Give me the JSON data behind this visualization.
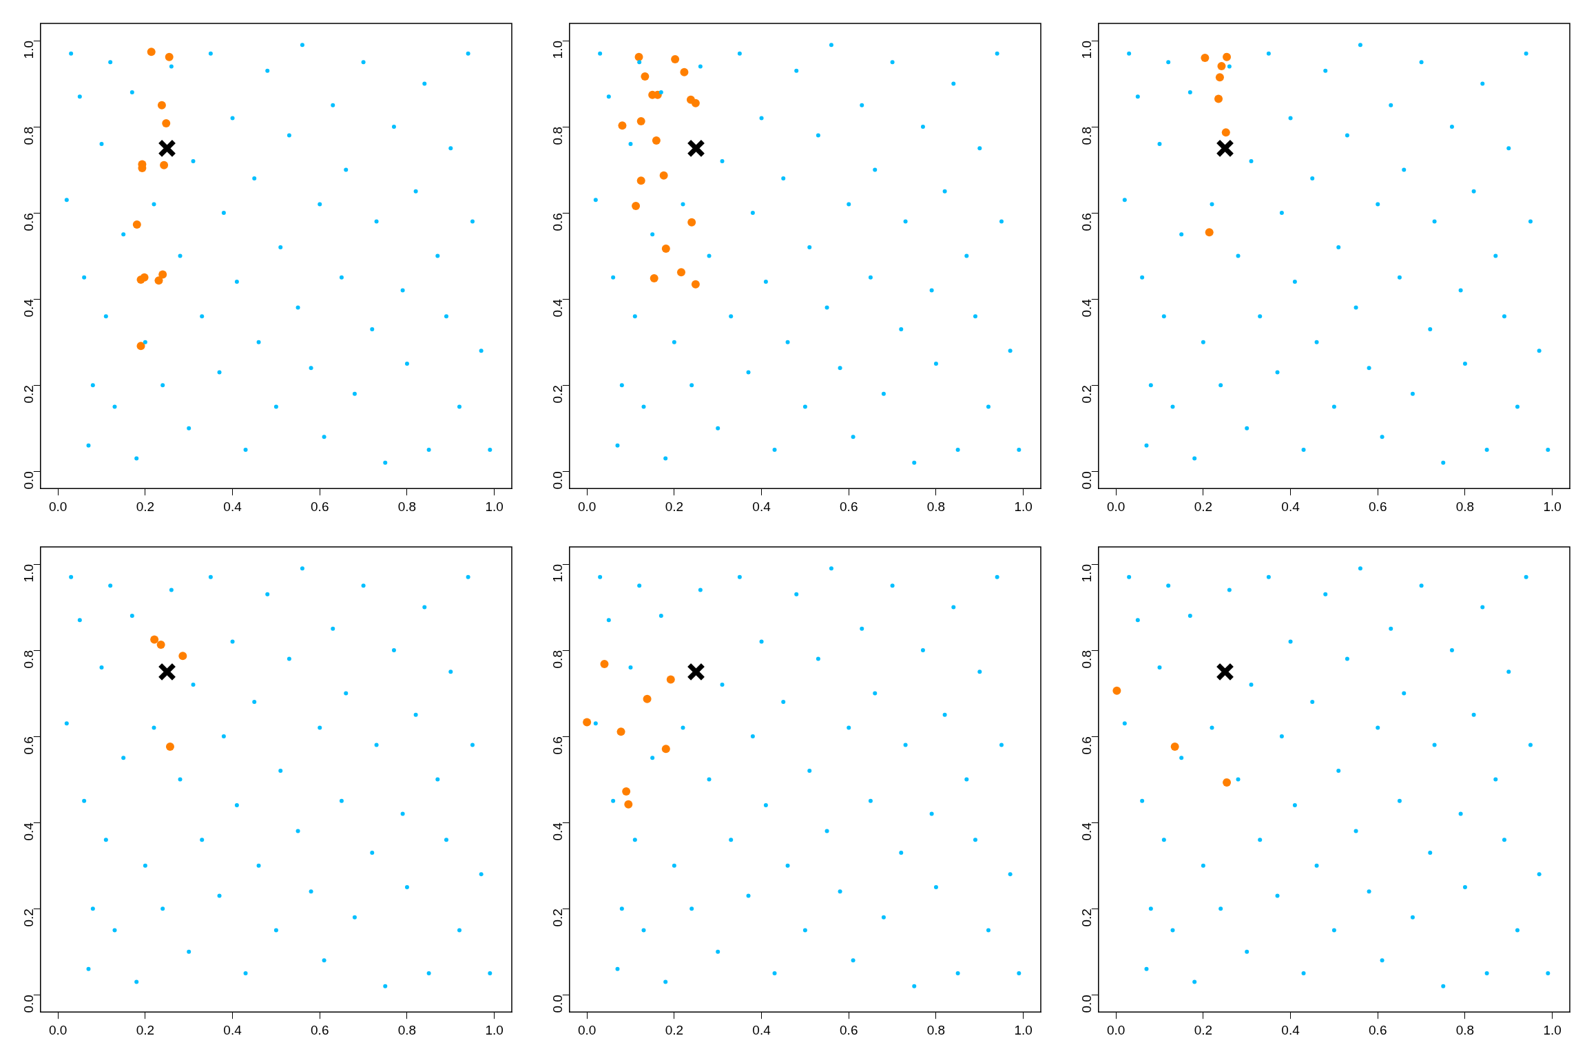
{
  "chart_data": [
    {
      "type": "scatter",
      "xlim": [
        -0.04,
        1.04
      ],
      "ylim": [
        -0.04,
        1.04
      ],
      "xticks": [
        {
          "value": 0,
          "label": "0.0"
        },
        {
          "value": 0.2,
          "label": "0.2"
        },
        {
          "value": 0.4,
          "label": "0.4"
        },
        {
          "value": 0.6,
          "label": "0.6"
        },
        {
          "value": 0.8,
          "label": "0.8"
        },
        {
          "value": 1,
          "label": "1.0"
        }
      ],
      "yticks": [
        {
          "value": 0,
          "label": "0.0"
        },
        {
          "value": 0.2,
          "label": "0.2"
        },
        {
          "value": 0.4,
          "label": "0.4"
        },
        {
          "value": 0.6,
          "label": "0.6"
        },
        {
          "value": 0.8,
          "label": "0.8"
        },
        {
          "value": 1,
          "label": "1.0"
        }
      ],
      "grid": false,
      "legend": false,
      "series": [
        {
          "color": "#00bfff",
          "marker": "circle",
          "x": [
            0.02,
            0.03,
            0.05,
            0.06,
            0.07,
            0.08,
            0.1,
            0.11,
            0.12,
            0.13,
            0.15,
            0.17,
            0.18,
            0.2,
            0.22,
            0.24,
            0.26,
            0.28,
            0.3,
            0.31,
            0.33,
            0.35,
            0.37,
            0.38,
            0.4,
            0.41,
            0.43,
            0.45,
            0.46,
            0.48,
            0.5,
            0.51,
            0.53,
            0.55,
            0.56,
            0.58,
            0.6,
            0.61,
            0.63,
            0.65,
            0.66,
            0.68,
            0.7,
            0.72,
            0.73,
            0.75,
            0.77,
            0.79,
            0.8,
            0.82,
            0.84,
            0.85,
            0.87,
            0.89,
            0.9,
            0.92,
            0.94,
            0.95,
            0.97,
            0.99
          ],
          "values": [
            0.63,
            0.97,
            0.87,
            0.45,
            0.06,
            0.2,
            0.76,
            0.36,
            0.95,
            0.15,
            0.55,
            0.88,
            0.03,
            0.3,
            0.62,
            0.2,
            0.94,
            0.5,
            0.1,
            0.72,
            0.36,
            0.97,
            0.23,
            0.6,
            0.82,
            0.44,
            0.05,
            0.68,
            0.3,
            0.93,
            0.15,
            0.52,
            0.78,
            0.38,
            0.99,
            0.24,
            0.62,
            0.08,
            0.85,
            0.45,
            0.7,
            0.18,
            0.95,
            0.33,
            0.58,
            0.02,
            0.8,
            0.42,
            0.25,
            0.65,
            0.9,
            0.05,
            0.5,
            0.36,
            0.75,
            0.15,
            0.97,
            0.58,
            0.28,
            0.05
          ]
        },
        {
          "color": "#ff7f00",
          "marker": "circle",
          "x": [
            0.214,
            0.255,
            0.238,
            0.248,
            0.193,
            0.193,
            0.243,
            0.181,
            0.19,
            0.198,
            0.231,
            0.24,
            0.19
          ],
          "values": [
            0.974,
            0.962,
            0.85,
            0.808,
            0.713,
            0.704,
            0.711,
            0.573,
            0.445,
            0.45,
            0.443,
            0.457,
            0.291
          ]
        },
        {
          "color": "#000000",
          "marker": "cross",
          "x": [
            0.25
          ],
          "values": [
            0.75
          ]
        }
      ]
    },
    {
      "type": "scatter",
      "xlim": [
        -0.04,
        1.04
      ],
      "ylim": [
        -0.04,
        1.04
      ],
      "xticks": [
        {
          "value": 0,
          "label": "0.0"
        },
        {
          "value": 0.2,
          "label": "0.2"
        },
        {
          "value": 0.4,
          "label": "0.4"
        },
        {
          "value": 0.6,
          "label": "0.6"
        },
        {
          "value": 0.8,
          "label": "0.8"
        },
        {
          "value": 1,
          "label": "1.0"
        }
      ],
      "yticks": [
        {
          "value": 0,
          "label": "0.0"
        },
        {
          "value": 0.2,
          "label": "0.2"
        },
        {
          "value": 0.4,
          "label": "0.4"
        },
        {
          "value": 0.6,
          "label": "0.6"
        },
        {
          "value": 0.8,
          "label": "0.8"
        },
        {
          "value": 1,
          "label": "1.0"
        }
      ],
      "grid": false,
      "legend": false,
      "series": [
        {
          "color": "#00bfff",
          "marker": "circle",
          "x": [
            0.02,
            0.03,
            0.05,
            0.06,
            0.07,
            0.08,
            0.1,
            0.11,
            0.12,
            0.13,
            0.15,
            0.17,
            0.18,
            0.2,
            0.22,
            0.24,
            0.26,
            0.28,
            0.3,
            0.31,
            0.33,
            0.35,
            0.37,
            0.38,
            0.4,
            0.41,
            0.43,
            0.45,
            0.46,
            0.48,
            0.5,
            0.51,
            0.53,
            0.55,
            0.56,
            0.58,
            0.6,
            0.61,
            0.63,
            0.65,
            0.66,
            0.68,
            0.7,
            0.72,
            0.73,
            0.75,
            0.77,
            0.79,
            0.8,
            0.82,
            0.84,
            0.85,
            0.87,
            0.89,
            0.9,
            0.92,
            0.94,
            0.95,
            0.97,
            0.99
          ],
          "values": [
            0.63,
            0.97,
            0.87,
            0.45,
            0.06,
            0.2,
            0.76,
            0.36,
            0.95,
            0.15,
            0.55,
            0.88,
            0.03,
            0.3,
            0.62,
            0.2,
            0.94,
            0.5,
            0.1,
            0.72,
            0.36,
            0.97,
            0.23,
            0.6,
            0.82,
            0.44,
            0.05,
            0.68,
            0.3,
            0.93,
            0.15,
            0.52,
            0.78,
            0.38,
            0.99,
            0.24,
            0.62,
            0.08,
            0.85,
            0.45,
            0.7,
            0.18,
            0.95,
            0.33,
            0.58,
            0.02,
            0.8,
            0.42,
            0.25,
            0.65,
            0.9,
            0.05,
            0.5,
            0.36,
            0.75,
            0.15,
            0.97,
            0.58,
            0.28,
            0.05
          ]
        },
        {
          "color": "#ff7f00",
          "marker": "circle",
          "x": [
            0.119,
            0.202,
            0.223,
            0.081,
            0.124,
            0.133,
            0.15,
            0.162,
            0.238,
            0.249,
            0.159,
            0.124,
            0.176,
            0.112,
            0.24,
            0.181,
            0.154,
            0.216,
            0.249
          ],
          "values": [
            0.962,
            0.957,
            0.927,
            0.803,
            0.813,
            0.917,
            0.874,
            0.874,
            0.863,
            0.855,
            0.768,
            0.675,
            0.687,
            0.616,
            0.578,
            0.517,
            0.448,
            0.462,
            0.434
          ]
        },
        {
          "color": "#000000",
          "marker": "cross",
          "x": [
            0.25
          ],
          "values": [
            0.75
          ]
        }
      ]
    },
    {
      "type": "scatter",
      "xlim": [
        -0.04,
        1.04
      ],
      "ylim": [
        -0.04,
        1.04
      ],
      "xticks": [
        {
          "value": 0,
          "label": "0.0"
        },
        {
          "value": 0.2,
          "label": "0.2"
        },
        {
          "value": 0.4,
          "label": "0.4"
        },
        {
          "value": 0.6,
          "label": "0.6"
        },
        {
          "value": 0.8,
          "label": "0.8"
        },
        {
          "value": 1,
          "label": "1.0"
        }
      ],
      "yticks": [
        {
          "value": 0,
          "label": "0.0"
        },
        {
          "value": 0.2,
          "label": "0.2"
        },
        {
          "value": 0.4,
          "label": "0.4"
        },
        {
          "value": 0.6,
          "label": "0.6"
        },
        {
          "value": 0.8,
          "label": "0.8"
        },
        {
          "value": 1,
          "label": "1.0"
        }
      ],
      "grid": false,
      "legend": false,
      "series": [
        {
          "color": "#00bfff",
          "marker": "circle",
          "x": [
            0.02,
            0.03,
            0.05,
            0.06,
            0.07,
            0.08,
            0.1,
            0.11,
            0.12,
            0.13,
            0.15,
            0.17,
            0.18,
            0.2,
            0.22,
            0.24,
            0.26,
            0.28,
            0.3,
            0.31,
            0.33,
            0.35,
            0.37,
            0.38,
            0.4,
            0.41,
            0.43,
            0.45,
            0.46,
            0.48,
            0.5,
            0.51,
            0.53,
            0.55,
            0.56,
            0.58,
            0.6,
            0.61,
            0.63,
            0.65,
            0.66,
            0.68,
            0.7,
            0.72,
            0.73,
            0.75,
            0.77,
            0.79,
            0.8,
            0.82,
            0.84,
            0.85,
            0.87,
            0.89,
            0.9,
            0.92,
            0.94,
            0.95,
            0.97,
            0.99
          ],
          "values": [
            0.63,
            0.97,
            0.87,
            0.45,
            0.06,
            0.2,
            0.76,
            0.36,
            0.95,
            0.15,
            0.55,
            0.88,
            0.03,
            0.3,
            0.62,
            0.2,
            0.94,
            0.5,
            0.1,
            0.72,
            0.36,
            0.97,
            0.23,
            0.6,
            0.82,
            0.44,
            0.05,
            0.68,
            0.3,
            0.93,
            0.15,
            0.52,
            0.78,
            0.38,
            0.99,
            0.24,
            0.62,
            0.08,
            0.85,
            0.45,
            0.7,
            0.18,
            0.95,
            0.33,
            0.58,
            0.02,
            0.8,
            0.42,
            0.25,
            0.65,
            0.9,
            0.05,
            0.5,
            0.36,
            0.75,
            0.15,
            0.97,
            0.58,
            0.28,
            0.05
          ]
        },
        {
          "color": "#ff7f00",
          "marker": "circle",
          "x": [
            0.204,
            0.254,
            0.242,
            0.238,
            0.235,
            0.252,
            0.214
          ],
          "values": [
            0.96,
            0.962,
            0.941,
            0.915,
            0.865,
            0.787,
            0.555
          ]
        },
        {
          "color": "#000000",
          "marker": "cross",
          "x": [
            0.25
          ],
          "values": [
            0.75
          ]
        }
      ]
    },
    {
      "type": "scatter",
      "xlim": [
        -0.04,
        1.04
      ],
      "ylim": [
        -0.04,
        1.04
      ],
      "xticks": [
        {
          "value": 0,
          "label": "0.0"
        },
        {
          "value": 0.2,
          "label": "0.2"
        },
        {
          "value": 0.4,
          "label": "0.4"
        },
        {
          "value": 0.6,
          "label": "0.6"
        },
        {
          "value": 0.8,
          "label": "0.8"
        },
        {
          "value": 1,
          "label": "1.0"
        }
      ],
      "yticks": [
        {
          "value": 0,
          "label": "0.0"
        },
        {
          "value": 0.2,
          "label": "0.2"
        },
        {
          "value": 0.4,
          "label": "0.4"
        },
        {
          "value": 0.6,
          "label": "0.6"
        },
        {
          "value": 0.8,
          "label": "0.8"
        },
        {
          "value": 1,
          "label": "1.0"
        }
      ],
      "grid": false,
      "legend": false,
      "series": [
        {
          "color": "#00bfff",
          "marker": "circle",
          "x": [
            0.02,
            0.03,
            0.05,
            0.06,
            0.07,
            0.08,
            0.1,
            0.11,
            0.12,
            0.13,
            0.15,
            0.17,
            0.18,
            0.2,
            0.22,
            0.24,
            0.26,
            0.28,
            0.3,
            0.31,
            0.33,
            0.35,
            0.37,
            0.38,
            0.4,
            0.41,
            0.43,
            0.45,
            0.46,
            0.48,
            0.5,
            0.51,
            0.53,
            0.55,
            0.56,
            0.58,
            0.6,
            0.61,
            0.63,
            0.65,
            0.66,
            0.68,
            0.7,
            0.72,
            0.73,
            0.75,
            0.77,
            0.79,
            0.8,
            0.82,
            0.84,
            0.85,
            0.87,
            0.89,
            0.9,
            0.92,
            0.94,
            0.95,
            0.97,
            0.99
          ],
          "values": [
            0.63,
            0.97,
            0.87,
            0.45,
            0.06,
            0.2,
            0.76,
            0.36,
            0.95,
            0.15,
            0.55,
            0.88,
            0.03,
            0.3,
            0.62,
            0.2,
            0.94,
            0.5,
            0.1,
            0.72,
            0.36,
            0.97,
            0.23,
            0.6,
            0.82,
            0.44,
            0.05,
            0.68,
            0.3,
            0.93,
            0.15,
            0.52,
            0.78,
            0.38,
            0.99,
            0.24,
            0.62,
            0.08,
            0.85,
            0.45,
            0.7,
            0.18,
            0.95,
            0.33,
            0.58,
            0.02,
            0.8,
            0.42,
            0.25,
            0.65,
            0.9,
            0.05,
            0.5,
            0.36,
            0.75,
            0.15,
            0.97,
            0.58,
            0.28,
            0.05
          ]
        },
        {
          "color": "#ff7f00",
          "marker": "circle",
          "x": [
            0.221,
            0.236,
            0.286,
            0.257
          ],
          "values": [
            0.825,
            0.813,
            0.787,
            0.576
          ]
        },
        {
          "color": "#000000",
          "marker": "cross",
          "x": [
            0.25
          ],
          "values": [
            0.75
          ]
        }
      ]
    },
    {
      "type": "scatter",
      "xlim": [
        -0.04,
        1.04
      ],
      "ylim": [
        -0.04,
        1.04
      ],
      "xticks": [
        {
          "value": 0,
          "label": "0.0"
        },
        {
          "value": 0.2,
          "label": "0.2"
        },
        {
          "value": 0.4,
          "label": "0.4"
        },
        {
          "value": 0.6,
          "label": "0.6"
        },
        {
          "value": 0.8,
          "label": "0.8"
        },
        {
          "value": 1,
          "label": "1.0"
        }
      ],
      "yticks": [
        {
          "value": 0,
          "label": "0.0"
        },
        {
          "value": 0.2,
          "label": "0.2"
        },
        {
          "value": 0.4,
          "label": "0.4"
        },
        {
          "value": 0.6,
          "label": "0.6"
        },
        {
          "value": 0.8,
          "label": "0.8"
        },
        {
          "value": 1,
          "label": "1.0"
        }
      ],
      "grid": false,
      "legend": false,
      "series": [
        {
          "color": "#00bfff",
          "marker": "circle",
          "x": [
            0.02,
            0.03,
            0.05,
            0.06,
            0.07,
            0.08,
            0.1,
            0.11,
            0.12,
            0.13,
            0.15,
            0.17,
            0.18,
            0.2,
            0.22,
            0.24,
            0.26,
            0.28,
            0.3,
            0.31,
            0.33,
            0.35,
            0.37,
            0.38,
            0.4,
            0.41,
            0.43,
            0.45,
            0.46,
            0.48,
            0.5,
            0.51,
            0.53,
            0.55,
            0.56,
            0.58,
            0.6,
            0.61,
            0.63,
            0.65,
            0.66,
            0.68,
            0.7,
            0.72,
            0.73,
            0.75,
            0.77,
            0.79,
            0.8,
            0.82,
            0.84,
            0.85,
            0.87,
            0.89,
            0.9,
            0.92,
            0.94,
            0.95,
            0.97,
            0.99
          ],
          "values": [
            0.63,
            0.97,
            0.87,
            0.45,
            0.06,
            0.2,
            0.76,
            0.36,
            0.95,
            0.15,
            0.55,
            0.88,
            0.03,
            0.3,
            0.62,
            0.2,
            0.94,
            0.5,
            0.1,
            0.72,
            0.36,
            0.97,
            0.23,
            0.6,
            0.82,
            0.44,
            0.05,
            0.68,
            0.3,
            0.93,
            0.15,
            0.52,
            0.78,
            0.38,
            0.99,
            0.24,
            0.62,
            0.08,
            0.85,
            0.45,
            0.7,
            0.18,
            0.95,
            0.33,
            0.58,
            0.02,
            0.8,
            0.42,
            0.25,
            0.65,
            0.9,
            0.05,
            0.5,
            0.36,
            0.75,
            0.15,
            0.97,
            0.58,
            0.28,
            0.05
          ]
        },
        {
          "color": "#ff7f00",
          "marker": "circle",
          "x": [
            0.04,
            0.0,
            0.078,
            0.138,
            0.192,
            0.181,
            0.09,
            0.095
          ],
          "values": [
            0.768,
            0.633,
            0.611,
            0.687,
            0.732,
            0.571,
            0.472,
            0.442
          ]
        },
        {
          "color": "#000000",
          "marker": "cross",
          "x": [
            0.25
          ],
          "values": [
            0.75
          ]
        }
      ]
    },
    {
      "type": "scatter",
      "xlim": [
        -0.04,
        1.04
      ],
      "ylim": [
        -0.04,
        1.04
      ],
      "xticks": [
        {
          "value": 0,
          "label": "0.0"
        },
        {
          "value": 0.2,
          "label": "0.2"
        },
        {
          "value": 0.4,
          "label": "0.4"
        },
        {
          "value": 0.6,
          "label": "0.6"
        },
        {
          "value": 0.8,
          "label": "0.8"
        },
        {
          "value": 1,
          "label": "1.0"
        }
      ],
      "yticks": [
        {
          "value": 0,
          "label": "0.0"
        },
        {
          "value": 0.2,
          "label": "0.2"
        },
        {
          "value": 0.4,
          "label": "0.4"
        },
        {
          "value": 0.6,
          "label": "0.6"
        },
        {
          "value": 0.8,
          "label": "0.8"
        },
        {
          "value": 1,
          "label": "1.0"
        }
      ],
      "grid": false,
      "legend": false,
      "series": [
        {
          "color": "#00bfff",
          "marker": "circle",
          "x": [
            0.02,
            0.03,
            0.05,
            0.06,
            0.07,
            0.08,
            0.1,
            0.11,
            0.12,
            0.13,
            0.15,
            0.17,
            0.18,
            0.2,
            0.22,
            0.24,
            0.26,
            0.28,
            0.3,
            0.31,
            0.33,
            0.35,
            0.37,
            0.38,
            0.4,
            0.41,
            0.43,
            0.45,
            0.46,
            0.48,
            0.5,
            0.51,
            0.53,
            0.55,
            0.56,
            0.58,
            0.6,
            0.61,
            0.63,
            0.65,
            0.66,
            0.68,
            0.7,
            0.72,
            0.73,
            0.75,
            0.77,
            0.79,
            0.8,
            0.82,
            0.84,
            0.85,
            0.87,
            0.89,
            0.9,
            0.92,
            0.94,
            0.95,
            0.97,
            0.99
          ],
          "values": [
            0.63,
            0.97,
            0.87,
            0.45,
            0.06,
            0.2,
            0.76,
            0.36,
            0.95,
            0.15,
            0.55,
            0.88,
            0.03,
            0.3,
            0.62,
            0.2,
            0.94,
            0.5,
            0.1,
            0.72,
            0.36,
            0.97,
            0.23,
            0.6,
            0.82,
            0.44,
            0.05,
            0.68,
            0.3,
            0.93,
            0.15,
            0.52,
            0.78,
            0.38,
            0.99,
            0.24,
            0.62,
            0.08,
            0.85,
            0.45,
            0.7,
            0.18,
            0.95,
            0.33,
            0.58,
            0.02,
            0.8,
            0.42,
            0.25,
            0.65,
            0.9,
            0.05,
            0.5,
            0.36,
            0.75,
            0.15,
            0.97,
            0.58,
            0.28,
            0.05
          ]
        },
        {
          "color": "#ff7f00",
          "marker": "circle",
          "x": [
            0.002,
            0.135,
            0.254
          ],
          "values": [
            0.706,
            0.576,
            0.493
          ]
        },
        {
          "color": "#000000",
          "marker": "cross",
          "x": [
            0.25
          ],
          "values": [
            0.75
          ]
        }
      ]
    }
  ]
}
